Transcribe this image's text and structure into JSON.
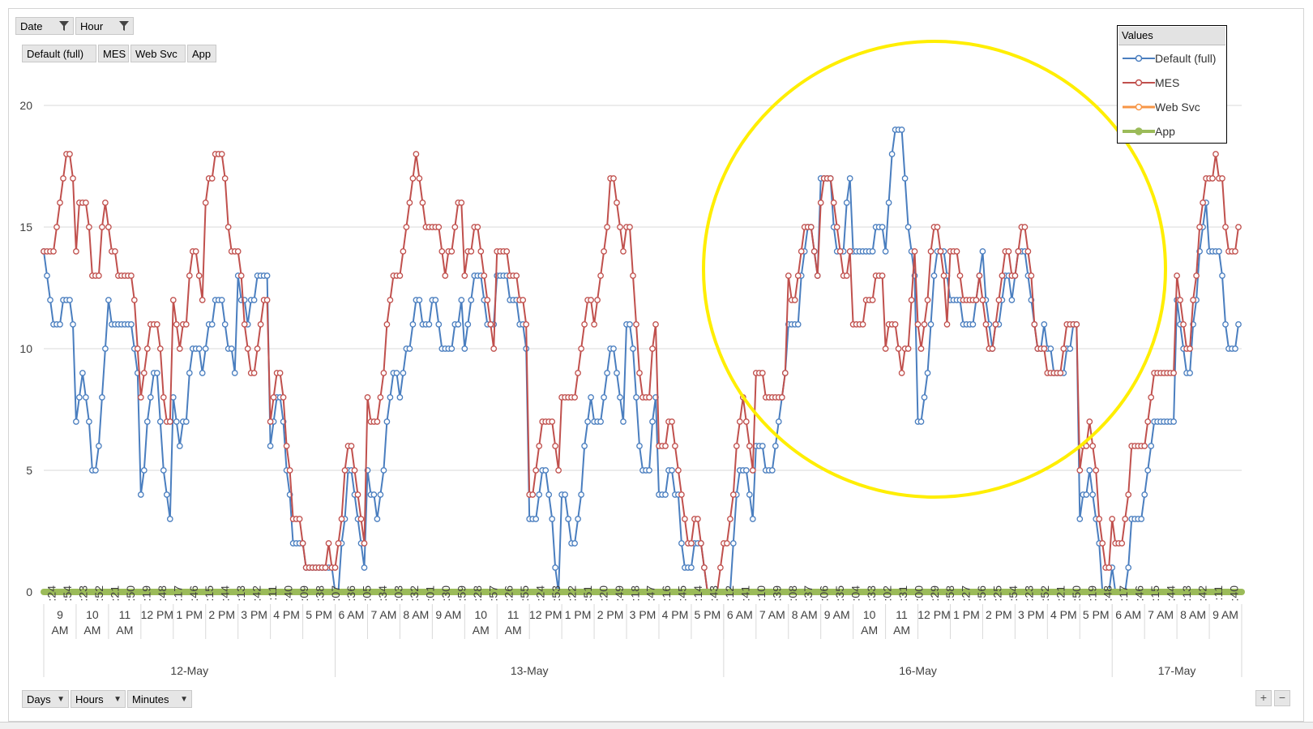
{
  "filters": {
    "date_label": "Date",
    "hour_label": "Hour",
    "series_buttons": [
      "Default (full)",
      "MES",
      "Web Svc",
      "App"
    ]
  },
  "axis_buttons": [
    "Days",
    "Hours",
    "Minutes"
  ],
  "zoom": {
    "plus": "+",
    "minus": "−"
  },
  "legend": {
    "title": "Values",
    "items": [
      {
        "name": "Default (full)",
        "color": "#4a7ebf"
      },
      {
        "name": "MES",
        "color": "#c0504d"
      },
      {
        "name": "Web Svc",
        "color": "#f79646"
      },
      {
        "name": "App",
        "color": "#9bbb59"
      }
    ]
  },
  "highlight": {
    "shape": "circle",
    "color": "#ffee00"
  },
  "chart_data": {
    "type": "line",
    "title": "",
    "xlabel": "",
    "ylabel": "",
    "ylim": [
      0,
      20
    ],
    "yticks": [
      0,
      5,
      10,
      15,
      20
    ],
    "grid": "horizontal",
    "legend_position": "top-right",
    "minute_ticks": [
      ":24",
      ":54",
      ":23",
      ":52",
      ":21",
      ":50",
      ":19",
      ":48",
      ":17",
      ":46",
      ":15",
      ":44",
      ":13",
      ":42",
      ":11",
      ":40",
      ":09",
      ":38",
      ":07",
      ":36",
      ":05",
      ":34",
      ":03",
      ":32",
      ":01",
      ":30",
      ":59",
      ":28",
      ":57",
      ":26",
      ":55",
      ":24",
      ":53",
      ":22",
      ":51",
      ":20",
      ":49",
      ":18",
      ":47",
      ":16",
      ":45",
      ":14",
      ":43",
      ":12",
      ":41",
      ":10",
      ":39",
      ":08",
      ":37",
      ":06",
      ":35",
      ":04",
      ":33",
      ":02",
      ":31",
      ":00",
      ":29",
      ":58",
      ":27",
      ":56",
      ":25",
      ":54",
      ":23",
      ":52",
      ":21",
      ":50",
      ":19",
      ":48",
      ":17",
      ":46",
      ":15",
      ":44",
      ":13",
      ":42",
      ":11",
      ":40"
    ],
    "hour_ticks": [
      "9 AM",
      "10 AM",
      "11 AM",
      "12 PM",
      "1 PM",
      "2 PM",
      "3 PM",
      "4 PM",
      "5 PM",
      "6 AM",
      "7 AM",
      "8 AM",
      "9 AM",
      "10 AM",
      "11 AM",
      "12 PM",
      "1 PM",
      "2 PM",
      "3 PM",
      "4 PM",
      "5 PM",
      "6 AM",
      "7 AM",
      "8 AM",
      "9 AM",
      "10 AM",
      "11 AM",
      "12 PM",
      "1 PM",
      "2 PM",
      "3 PM",
      "4 PM",
      "5 PM",
      "6 AM",
      "7 AM",
      "8 AM",
      "9 AM"
    ],
    "day_ticks": [
      "12-May",
      "13-May",
      "16-May",
      "17-May"
    ],
    "days": [
      {
        "day": "12-May",
        "hours": [
          {
            "hour": "9 AM",
            "default": [
              13,
              12,
              9
            ],
            "mes": [
              13,
              17,
              16
            ]
          },
          {
            "hour": "10 AM",
            "default": [
              7,
              6,
              12
            ],
            "mes": [
              14,
              14,
              18
            ]
          },
          {
            "hour": "11 AM",
            "default": [
              12,
              11,
              9
            ],
            "mes": [
              15,
              13,
              10
            ]
          },
          {
            "hour": "12 PM",
            "default": [
              5,
              8,
              4
            ],
            "mes": [
              9,
              10,
              8
            ]
          },
          {
            "hour": "1 PM",
            "default": [
              8,
              9,
              7
            ],
            "mes": [
              12,
              13,
              10
            ]
          },
          {
            "hour": "2 PM",
            "default": [
              10,
              12,
              9
            ],
            "mes": [
              16,
              18,
              13
            ]
          },
          {
            "hour": "3 PM",
            "default": [
              11,
              14,
              10
            ],
            "mes": [
              12,
              11,
              10
            ]
          },
          {
            "hour": "4 PM",
            "default": [
              7,
              5,
              3
            ],
            "mes": [
              8,
              6,
              4
            ]
          },
          {
            "hour": "5 PM",
            "default": [
              1,
              1,
              0
            ],
            "mes": [
              1,
              1,
              1
            ]
          }
        ]
      },
      {
        "day": "13-May",
        "hours": [
          {
            "hour": "6 AM",
            "default": [
              1,
              3,
              3
            ],
            "mes": [
              3,
              4,
              4
            ]
          },
          {
            "hour": "7 AM",
            "default": [
              4,
              6,
              7
            ],
            "mes": [
              7,
              10,
              12
            ]
          },
          {
            "hour": "8 AM",
            "default": [
              9,
              11,
              12
            ],
            "mes": [
              14,
              17,
              15
            ]
          },
          {
            "hour": "9 AM",
            "default": [
              10,
              12,
              9
            ],
            "mes": [
              13,
              16,
              14
            ]
          },
          {
            "hour": "10 AM",
            "default": [
              11,
              12,
              13
            ],
            "mes": [
              14,
              13,
              12
            ]
          },
          {
            "hour": "11 AM",
            "default": [
              12,
              13,
              9
            ],
            "mes": [
              13,
              14,
              10
            ]
          },
          {
            "hour": "12 PM",
            "default": [
              5,
              3,
              1
            ],
            "mes": [
              6,
              5,
              7
            ]
          },
          {
            "hour": "1 PM",
            "default": [
              3,
              4,
              7
            ],
            "mes": [
              7,
              10,
              11
            ]
          },
          {
            "hour": "2 PM",
            "default": [
              8,
              9,
              7
            ],
            "mes": [
              12,
              16,
              14
            ]
          },
          {
            "hour": "3 PM",
            "default": [
              9,
              7,
              6
            ],
            "mes": [
              13,
              10,
              9
            ]
          },
          {
            "hour": "4 PM",
            "default": [
              5,
              3,
              2
            ],
            "mes": [
              7,
              5,
              3
            ]
          },
          {
            "hour": "5 PM",
            "default": [
              1,
              1,
              0
            ],
            "mes": [
              2,
              1,
              1
            ]
          }
        ]
      },
      {
        "day": "16-May",
        "hours": [
          {
            "hour": "6 AM",
            "default": [
              1,
              3,
              4
            ],
            "mes": [
              4,
              5,
              7
            ]
          },
          {
            "hour": "7 AM",
            "default": [
              5,
              6,
              8
            ],
            "mes": [
              8,
              9,
              7
            ]
          },
          {
            "hour": "8 AM",
            "default": [
              11,
              14,
              12
            ],
            "mes": [
              13,
              15,
              12
            ]
          },
          {
            "hour": "9 AM",
            "default": [
              15,
              16,
              17
            ],
            "mes": [
              14,
              17,
              12
            ]
          },
          {
            "hour": "10 AM",
            "default": [
              15,
              13,
              16
            ],
            "mes": [
              12,
              11,
              14
            ]
          },
          {
            "hour": "11 AM",
            "default": [
              14,
              19,
              13
            ],
            "mes": [
              10,
              9,
              16
            ]
          },
          {
            "hour": "12 PM",
            "default": [
              8,
              12,
              13
            ],
            "mes": [
              12,
              14,
              10
            ]
          },
          {
            "hour": "1 PM",
            "default": [
              12,
              11,
              13
            ],
            "mes": [
              14,
              12,
              13
            ]
          },
          {
            "hour": "2 PM",
            "default": [
              13,
              12,
              11
            ],
            "mes": [
              11,
              13,
              12
            ]
          },
          {
            "hour": "3 PM",
            "default": [
              12,
              13,
              11
            ],
            "mes": [
              12,
              14,
              10
            ]
          },
          {
            "hour": "4 PM",
            "default": [
              10,
              9,
              11
            ],
            "mes": [
              9,
              10,
              11
            ]
          },
          {
            "hour": "5 PM",
            "default": [
              4,
              2,
              1
            ],
            "mes": [
              6,
              4,
              2
            ]
          }
        ]
      },
      {
        "day": "17-May",
        "hours": [
          {
            "hour": "6 AM",
            "default": [
              1,
              1,
              2
            ],
            "mes": [
              3,
              4,
              5
            ]
          },
          {
            "hour": "7 AM",
            "default": [
              5,
              7,
              8
            ],
            "mes": [
              7,
              9,
              10
            ]
          },
          {
            "hour": "8 AM",
            "default": [
              10,
              12,
              14
            ],
            "mes": [
              11,
              13,
              15
            ]
          },
          {
            "hour": "9 AM",
            "default": [
              14,
              11,
              12
            ],
            "mes": [
              17,
              15,
              16
            ]
          }
        ]
      }
    ],
    "series": [
      {
        "name": "Default (full)"
      },
      {
        "name": "MES"
      },
      {
        "name": "Web Svc",
        "values_constant": 0
      },
      {
        "name": "App",
        "values_constant": 0
      }
    ]
  }
}
